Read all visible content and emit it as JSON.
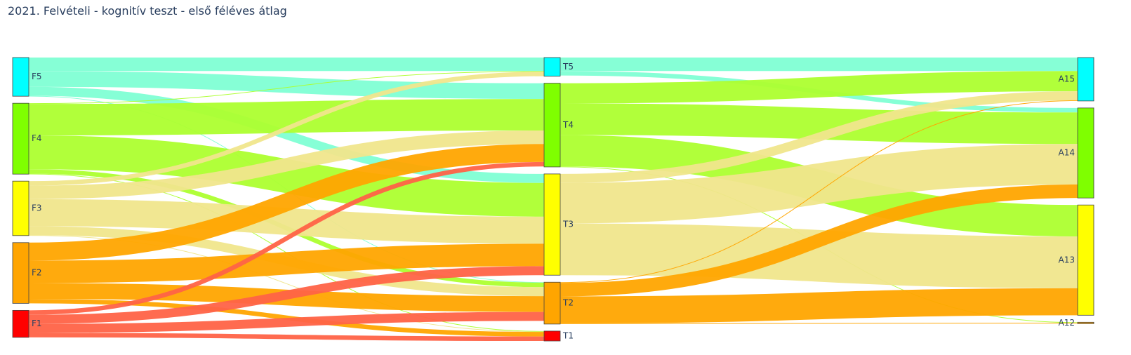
{
  "title": "2021. Felvételi - kognitív teszt - első féléves átlag",
  "chart_data": {
    "type": "sankey",
    "title": "2021. Felvételi - kognitív teszt - első féléves átlag",
    "nodes": [
      {
        "id": "F5",
        "label": "F5",
        "color": "#00ffff"
      },
      {
        "id": "F4",
        "label": "F4",
        "color": "#7fff00"
      },
      {
        "id": "F3",
        "label": "F3",
        "color": "#ffff00"
      },
      {
        "id": "F2",
        "label": "F2",
        "color": "#ffa500"
      },
      {
        "id": "F1",
        "label": "F1",
        "color": "#ff0000"
      },
      {
        "id": "T5",
        "label": "T5",
        "color": "#00ffff"
      },
      {
        "id": "T4",
        "label": "T4",
        "color": "#7fff00"
      },
      {
        "id": "T3",
        "label": "T3",
        "color": "#ffff00"
      },
      {
        "id": "T2",
        "label": "T2",
        "color": "#ffa500"
      },
      {
        "id": "T1",
        "label": "T1",
        "color": "#ff0000"
      },
      {
        "id": "A15",
        "label": "A15",
        "color": "#00ffff"
      },
      {
        "id": "A14",
        "label": "A14",
        "color": "#7fff00"
      },
      {
        "id": "A13",
        "label": "A13",
        "color": "#ffff00"
      },
      {
        "id": "A12",
        "label": "A12",
        "color": "#ffa500"
      }
    ],
    "links": [
      {
        "source": "F5",
        "target": "T5",
        "value": 6,
        "color": "#7fffd4"
      },
      {
        "source": "F5",
        "target": "T4",
        "value": 7,
        "color": "#7fffd4"
      },
      {
        "source": "F5",
        "target": "T3",
        "value": 4,
        "color": "#7fffd4"
      },
      {
        "source": "F5",
        "target": "T2",
        "value": 0.2,
        "color": "#7fffd4"
      },
      {
        "source": "F4",
        "target": "T5",
        "value": 0.3,
        "color": "#adff2f"
      },
      {
        "source": "F4",
        "target": "T4",
        "value": 14,
        "color": "#adff2f"
      },
      {
        "source": "F4",
        "target": "T3",
        "value": 15,
        "color": "#adff2f"
      },
      {
        "source": "F4",
        "target": "T2",
        "value": 2,
        "color": "#adff2f"
      },
      {
        "source": "F4",
        "target": "T1",
        "value": 0.2,
        "color": "#adff2f"
      },
      {
        "source": "F3",
        "target": "T5",
        "value": 2,
        "color": "#f0e68c"
      },
      {
        "source": "F3",
        "target": "T4",
        "value": 6,
        "color": "#f0e68c"
      },
      {
        "source": "F3",
        "target": "T3",
        "value": 12,
        "color": "#f0e68c"
      },
      {
        "source": "F3",
        "target": "T2",
        "value": 4,
        "color": "#f0e68c"
      },
      {
        "source": "F3",
        "target": "T1",
        "value": 0.2,
        "color": "#f0e68c"
      },
      {
        "source": "F2",
        "target": "T4",
        "value": 8,
        "color": "#ffa500"
      },
      {
        "source": "F2",
        "target": "T3",
        "value": 10,
        "color": "#ffa500"
      },
      {
        "source": "F2",
        "target": "T2",
        "value": 7,
        "color": "#ffa500"
      },
      {
        "source": "F2",
        "target": "T1",
        "value": 2,
        "color": "#ffa500"
      },
      {
        "source": "F1",
        "target": "T4",
        "value": 2,
        "color": "#ff6347"
      },
      {
        "source": "F1",
        "target": "T3",
        "value": 4,
        "color": "#ff6347"
      },
      {
        "source": "F1",
        "target": "T2",
        "value": 4,
        "color": "#ff6347"
      },
      {
        "source": "F1",
        "target": "T1",
        "value": 2,
        "color": "#ff6347"
      },
      {
        "source": "T5",
        "target": "A15",
        "value": 6,
        "color": "#7fffd4"
      },
      {
        "source": "T5",
        "target": "A14",
        "value": 2,
        "color": "#7fffd4"
      },
      {
        "source": "T4",
        "target": "A15",
        "value": 9,
        "color": "#adff2f"
      },
      {
        "source": "T4",
        "target": "A14",
        "value": 14,
        "color": "#adff2f"
      },
      {
        "source": "T4",
        "target": "A13",
        "value": 14,
        "color": "#adff2f"
      },
      {
        "source": "T4",
        "target": "A12",
        "value": 0.2,
        "color": "#adff2f"
      },
      {
        "source": "T3",
        "target": "A15",
        "value": 4,
        "color": "#f0e68c"
      },
      {
        "source": "T3",
        "target": "A14",
        "value": 18,
        "color": "#f0e68c"
      },
      {
        "source": "T3",
        "target": "A13",
        "value": 23,
        "color": "#f0e68c"
      },
      {
        "source": "T2",
        "target": "A15",
        "value": 0.3,
        "color": "#ffa500"
      },
      {
        "source": "T2",
        "target": "A14",
        "value": 6,
        "color": "#ffa500"
      },
      {
        "source": "T2",
        "target": "A13",
        "value": 12,
        "color": "#ffa500"
      },
      {
        "source": "T2",
        "target": "A12",
        "value": 0.3,
        "color": "#ffa500"
      }
    ]
  }
}
